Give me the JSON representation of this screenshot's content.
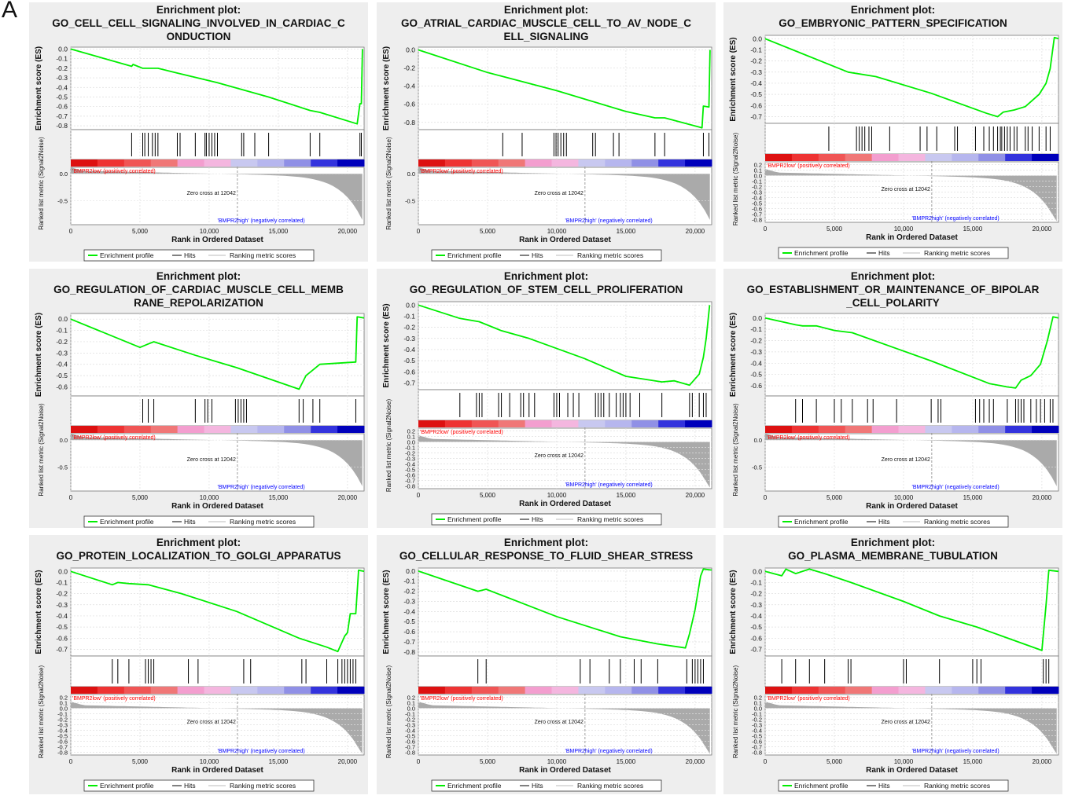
{
  "figure_label": "A",
  "common": {
    "title_prefix": "Enrichment plot:",
    "es_ylabel": "Enrichment score (ES)",
    "metric_ylabel": "Ranked list metric (Signal2Noise)",
    "xlabel": "Rank in Ordered Dataset",
    "x_ticks": [
      0,
      5000,
      10000,
      15000,
      20000
    ],
    "x_tick_labels": [
      "0",
      "5,000",
      "10,000",
      "15,000",
      "20,000"
    ],
    "x_range": [
      0,
      21200
    ],
    "zero_cross_label": "Zero cross at 12042",
    "zero_cross": 12042,
    "pos_label": "'BMPR2low' (positively correlated)",
    "neg_label": "'BMPR2high' (negatively correlated)",
    "legend": [
      "Enrichment profile",
      "Hits",
      "Ranking metric scores"
    ],
    "colors": {
      "profile": "#00ee00",
      "hits": "#000000",
      "metric": "#aaaaaa",
      "pos_text": "#ff0000",
      "neg_text": "#0000ff",
      "panel_bg": "#eeeeee",
      "heat": [
        "#dd1111",
        "#ee3333",
        "#f05555",
        "#f07777",
        "#f39ecf",
        "#f4b6df",
        "#c8c8f0",
        "#b6b6ee",
        "#9090e6",
        "#3333dd",
        "#0000bb"
      ]
    }
  },
  "chart_data": [
    {
      "type": "line",
      "title_lines": [
        "GO_CELL_CELL_SIGNALING_INVOLVED_IN_CARDIAC_C",
        "ONDUCTION"
      ],
      "es_ticks": [
        0.0,
        -0.1,
        -0.2,
        -0.3,
        -0.4,
        -0.5,
        -0.6,
        -0.7,
        -0.8
      ],
      "es_tick_labels": [
        "0.0",
        "-0.1",
        "-0.2",
        "-0.3",
        "-0.4",
        "-0.5",
        "-0.6",
        "-0.7",
        "-0.8"
      ],
      "es_ylim": [
        -0.84,
        0.02
      ],
      "metric_ticks": [
        0.0,
        -0.5
      ],
      "metric_tick_labels": [
        "0.0",
        "-0.5"
      ],
      "metric_ylim": [
        -0.95,
        0.12
      ],
      "hits": [
        4400,
        5200,
        5350,
        5600,
        5900,
        6100,
        6300,
        7700,
        7900,
        9000,
        9700,
        9800,
        10000,
        10200,
        10400,
        10600,
        12350,
        12500,
        13300,
        14300,
        17300,
        18000,
        20900,
        21000
      ],
      "profile": [
        [
          0,
          0.0
        ],
        [
          4400,
          -0.18
        ],
        [
          4500,
          -0.16
        ],
        [
          5200,
          -0.2
        ],
        [
          6300,
          -0.2
        ],
        [
          7700,
          -0.25
        ],
        [
          10600,
          -0.35
        ],
        [
          14300,
          -0.5
        ],
        [
          17300,
          -0.64
        ],
        [
          18000,
          -0.66
        ],
        [
          20700,
          -0.78
        ],
        [
          20900,
          -0.57
        ],
        [
          21000,
          -0.57
        ],
        [
          21080,
          0.0
        ]
      ]
    },
    {
      "type": "line",
      "title_lines": [
        "GO_ATRIAL_CARDIAC_MUSCLE_CELL_TO_AV_NODE_C",
        "ELL_SIGNALING"
      ],
      "es_ticks": [
        0.0,
        -0.2,
        -0.4,
        -0.6,
        -0.8
      ],
      "es_tick_labels": [
        "0.0",
        "-0.2",
        "-0.4",
        "-0.6",
        "-0.8"
      ],
      "es_ylim": [
        -0.88,
        0.03
      ],
      "metric_ticks": [
        0.0,
        -0.5
      ],
      "metric_tick_labels": [
        "0.0",
        "-0.5"
      ],
      "metric_ylim": [
        -0.95,
        0.12
      ],
      "hits": [
        6100,
        7500,
        9800,
        9950,
        10100,
        10300,
        10500,
        10700,
        12600,
        12800,
        14100,
        14500,
        17100,
        17800,
        20600,
        21000
      ],
      "profile": [
        [
          0,
          0.0
        ],
        [
          5000,
          -0.25
        ],
        [
          10000,
          -0.45
        ],
        [
          15000,
          -0.68
        ],
        [
          17100,
          -0.75
        ],
        [
          17800,
          -0.75
        ],
        [
          20500,
          -0.86
        ],
        [
          20600,
          -0.62
        ],
        [
          21000,
          -0.63
        ],
        [
          21080,
          0.0
        ]
      ]
    },
    {
      "type": "line",
      "title_lines": [
        "GO_EMBRYONIC_PATTERN_SPECIFICATION"
      ],
      "es_ticks": [
        0.0,
        -0.1,
        -0.2,
        -0.3,
        -0.4,
        -0.5,
        -0.6,
        -0.7
      ],
      "es_tick_labels": [
        "0.0",
        "-0.1",
        "-0.2",
        "-0.3",
        "-0.4",
        "-0.5",
        "-0.6",
        "-0.7"
      ],
      "es_ylim": [
        -0.76,
        0.03
      ],
      "metric_ticks": [
        0.2,
        0.1,
        0.0,
        -0.1,
        -0.2,
        -0.3,
        -0.4,
        -0.5,
        -0.6,
        -0.7,
        -0.8
      ],
      "metric_tick_labels": [
        "0.2",
        "0.1",
        "0.0",
        "-0.1",
        "-0.2",
        "-0.3",
        "-0.4",
        "-0.5",
        "-0.6",
        "-0.7",
        "-0.8"
      ],
      "metric_ylim": [
        -0.85,
        0.25
      ],
      "hits": [
        4600,
        6600,
        6800,
        7000,
        7200,
        7500,
        7700,
        9000,
        11200,
        11700,
        12400,
        13700,
        13900,
        15200,
        15800,
        16200,
        16500,
        16800,
        17000,
        17100,
        17300,
        17500,
        17700,
        18000,
        18200,
        18800,
        19000,
        19300,
        19800,
        20300,
        20600
      ],
      "profile": [
        [
          0,
          0.0
        ],
        [
          6000,
          -0.3
        ],
        [
          8000,
          -0.34
        ],
        [
          12000,
          -0.49
        ],
        [
          16000,
          -0.67
        ],
        [
          16800,
          -0.7
        ],
        [
          17200,
          -0.66
        ],
        [
          18000,
          -0.64
        ],
        [
          18800,
          -0.61
        ],
        [
          19800,
          -0.5
        ],
        [
          20300,
          -0.4
        ],
        [
          20600,
          -0.27
        ],
        [
          20900,
          0.01
        ],
        [
          21200,
          0.0
        ]
      ]
    },
    {
      "type": "line",
      "title_lines": [
        "GO_REGULATION_OF_CARDIAC_MUSCLE_CELL_MEMB",
        "RANE_REPOLARIZATION"
      ],
      "es_ticks": [
        0.0,
        -0.1,
        -0.2,
        -0.3,
        -0.4,
        -0.5,
        -0.6
      ],
      "es_tick_labels": [
        "0.0",
        "-0.1",
        "-0.2",
        "-0.3",
        "-0.4",
        "-0.5",
        "-0.6"
      ],
      "es_ylim": [
        -0.68,
        0.05
      ],
      "metric_ticks": [
        0.0,
        -0.5
      ],
      "metric_tick_labels": [
        "0.0",
        "-0.5"
      ],
      "metric_ylim": [
        -0.95,
        0.12
      ],
      "hits": [
        5200,
        5600,
        6000,
        9000,
        9700,
        9900,
        10200,
        11900,
        12100,
        12300,
        12500,
        12700,
        16500,
        16800,
        17500,
        18000,
        20600
      ],
      "profile": [
        [
          0,
          0.0
        ],
        [
          5000,
          -0.25
        ],
        [
          5600,
          -0.22
        ],
        [
          6000,
          -0.2
        ],
        [
          9000,
          -0.32
        ],
        [
          12000,
          -0.43
        ],
        [
          16500,
          -0.62
        ],
        [
          17000,
          -0.5
        ],
        [
          17500,
          -0.45
        ],
        [
          18000,
          -0.4
        ],
        [
          20600,
          -0.38
        ],
        [
          20700,
          0.02
        ],
        [
          21200,
          0.01
        ]
      ]
    },
    {
      "type": "line",
      "title_lines": [
        "GO_REGULATION_OF_STEM_CELL_PROLIFERATION"
      ],
      "es_ticks": [
        0.0,
        -0.1,
        -0.2,
        -0.3,
        -0.4,
        -0.5,
        -0.6,
        -0.7
      ],
      "es_tick_labels": [
        "0.0",
        "-0.1",
        "-0.2",
        "-0.3",
        "-0.4",
        "-0.5",
        "-0.6",
        "-0.7"
      ],
      "es_ylim": [
        -0.76,
        0.03
      ],
      "metric_ticks": [
        0.2,
        0.1,
        0.0,
        -0.1,
        -0.2,
        -0.3,
        -0.4,
        -0.5,
        -0.6,
        -0.7,
        -0.8
      ],
      "metric_tick_labels": [
        "0.2",
        "0.1",
        "0.0",
        "-0.1",
        "-0.2",
        "-0.3",
        "-0.4",
        "-0.5",
        "-0.6",
        "-0.7",
        "-0.8"
      ],
      "metric_ylim": [
        -0.85,
        0.25
      ],
      "hits": [
        3000,
        4200,
        4400,
        4600,
        5800,
        6000,
        6600,
        7400,
        7600,
        8000,
        8400,
        9800,
        10000,
        10200,
        10800,
        11200,
        11600,
        12800,
        13000,
        13200,
        13400,
        13800,
        14300,
        14600,
        14800,
        15000,
        15300,
        16000,
        17600,
        19600,
        19800,
        20300,
        20600,
        20800
      ],
      "profile": [
        [
          0,
          0.0
        ],
        [
          3000,
          -0.12
        ],
        [
          4400,
          -0.15
        ],
        [
          6000,
          -0.23
        ],
        [
          8000,
          -0.3
        ],
        [
          12000,
          -0.48
        ],
        [
          15000,
          -0.64
        ],
        [
          17600,
          -0.69
        ],
        [
          18500,
          -0.68
        ],
        [
          19600,
          -0.72
        ],
        [
          20300,
          -0.62
        ],
        [
          20600,
          -0.47
        ],
        [
          20800,
          -0.3
        ],
        [
          21050,
          0.0
        ]
      ]
    },
    {
      "type": "line",
      "title_lines": [
        "GO_ESTABLISHMENT_OR_MAINTENANCE_OF_BIPOLAR",
        "_CELL_POLARITY"
      ],
      "es_ticks": [
        0.0,
        -0.1,
        -0.2,
        -0.3,
        -0.4,
        -0.5,
        -0.6
      ],
      "es_tick_labels": [
        "0.0",
        "-0.1",
        "-0.2",
        "-0.3",
        "-0.4",
        "-0.5",
        "-0.6"
      ],
      "es_ylim": [
        -0.69,
        0.04
      ],
      "metric_ticks": [
        0.0,
        -0.5
      ],
      "metric_tick_labels": [
        "0.0",
        "-0.5"
      ],
      "metric_ylim": [
        -0.95,
        0.12
      ],
      "hits": [
        2200,
        2700,
        3700,
        5000,
        5500,
        6300,
        7400,
        7800,
        9500,
        12000,
        12500,
        12700,
        15200,
        15500,
        15800,
        16200,
        16500,
        17500,
        18100,
        18300,
        18500,
        18700,
        19200,
        19600,
        19900,
        20200,
        20600,
        20800
      ],
      "profile": [
        [
          0,
          0.0
        ],
        [
          2200,
          -0.06
        ],
        [
          2700,
          -0.07
        ],
        [
          3700,
          -0.07
        ],
        [
          5000,
          -0.11
        ],
        [
          6300,
          -0.13
        ],
        [
          12000,
          -0.38
        ],
        [
          16200,
          -0.58
        ],
        [
          17500,
          -0.61
        ],
        [
          18100,
          -0.62
        ],
        [
          18500,
          -0.55
        ],
        [
          19200,
          -0.51
        ],
        [
          19900,
          -0.41
        ],
        [
          20400,
          -0.2
        ],
        [
          20800,
          0.01
        ],
        [
          21200,
          0.0
        ]
      ]
    },
    {
      "type": "line",
      "title_lines": [
        "GO_PROTEIN_LOCALIZATION_TO_GOLGI_APPARATUS"
      ],
      "es_ticks": [
        0.0,
        -0.1,
        -0.2,
        -0.3,
        -0.4,
        -0.5,
        -0.6,
        -0.7
      ],
      "es_tick_labels": [
        "0.0",
        "-0.1",
        "-0.2",
        "-0.3",
        "-0.4",
        "-0.5",
        "-0.6",
        "-0.7"
      ],
      "es_ylim": [
        -0.76,
        0.03
      ],
      "metric_ticks": [
        0.2,
        0.1,
        0.0,
        -0.1,
        -0.2,
        -0.3,
        -0.4,
        -0.5,
        -0.6,
        -0.7,
        -0.8
      ],
      "metric_tick_labels": [
        "0.2",
        "0.1",
        "0.0",
        "-0.1",
        "-0.2",
        "-0.3",
        "-0.4",
        "-0.5",
        "-0.6",
        "-0.7",
        "-0.8"
      ],
      "metric_ylim": [
        -0.85,
        0.25
      ],
      "hits": [
        3000,
        3400,
        4200,
        5400,
        5600,
        5800,
        6000,
        8500,
        9200,
        12500,
        13000,
        16700,
        17000,
        18500,
        19300,
        19600,
        19800,
        20000,
        20200,
        20400,
        20600
      ],
      "profile": [
        [
          0,
          0.0
        ],
        [
          3000,
          -0.12
        ],
        [
          3400,
          -0.1
        ],
        [
          4200,
          -0.11
        ],
        [
          5600,
          -0.12
        ],
        [
          8000,
          -0.2
        ],
        [
          12000,
          -0.36
        ],
        [
          16500,
          -0.6
        ],
        [
          18500,
          -0.68
        ],
        [
          19300,
          -0.72
        ],
        [
          19800,
          -0.58
        ],
        [
          20000,
          -0.55
        ],
        [
          20200,
          -0.38
        ],
        [
          20600,
          -0.38
        ],
        [
          20800,
          0.01
        ],
        [
          21200,
          0.0
        ]
      ]
    },
    {
      "type": "line",
      "title_lines": [
        "GO_CELLULAR_RESPONSE_TO_FLUID_SHEAR_STRESS"
      ],
      "es_ticks": [
        0.0,
        -0.1,
        -0.2,
        -0.3,
        -0.4,
        -0.5,
        -0.6,
        -0.7,
        -0.8
      ],
      "es_tick_labels": [
        "0.0",
        "-0.1",
        "-0.2",
        "-0.3",
        "-0.4",
        "-0.5",
        "-0.6",
        "-0.7",
        "-0.8"
      ],
      "es_ylim": [
        -0.84,
        0.03
      ],
      "metric_ticks": [
        0.2,
        0.1,
        0.0,
        -0.1,
        -0.2,
        -0.3,
        -0.4,
        -0.5,
        -0.6,
        -0.7,
        -0.8
      ],
      "metric_tick_labels": [
        "0.2",
        "0.1",
        "0.0",
        "-0.1",
        "-0.2",
        "-0.3",
        "-0.4",
        "-0.5",
        "-0.6",
        "-0.7",
        "-0.8"
      ],
      "metric_ylim": [
        -0.85,
        0.25
      ],
      "hits": [
        4300,
        4900,
        11700,
        12400,
        13800,
        14600,
        15600,
        16100,
        17300,
        19400,
        19800,
        20000,
        20200,
        20400,
        20600
      ],
      "profile": [
        [
          0,
          0.0
        ],
        [
          4300,
          -0.2
        ],
        [
          4900,
          -0.18
        ],
        [
          10000,
          -0.45
        ],
        [
          14600,
          -0.65
        ],
        [
          17300,
          -0.72
        ],
        [
          19300,
          -0.76
        ],
        [
          19600,
          -0.62
        ],
        [
          19800,
          -0.5
        ],
        [
          20000,
          -0.38
        ],
        [
          20400,
          -0.05
        ],
        [
          20600,
          0.02
        ],
        [
          21200,
          0.01
        ]
      ]
    },
    {
      "type": "line",
      "title_lines": [
        "GO_PLASMA_MEMBRANE_TUBULATION"
      ],
      "es_ticks": [
        0.0,
        -0.1,
        -0.2,
        -0.3,
        -0.4,
        -0.5,
        -0.6,
        -0.7
      ],
      "es_tick_labels": [
        "0.0",
        "-0.1",
        "-0.2",
        "-0.3",
        "-0.4",
        "-0.5",
        "-0.6",
        "-0.7"
      ],
      "es_ylim": [
        -0.76,
        0.03
      ],
      "metric_ticks": [
        0.2,
        0.1,
        0.0,
        -0.1,
        -0.2,
        -0.3,
        -0.4,
        -0.5,
        -0.6,
        -0.7,
        -0.8
      ],
      "metric_tick_labels": [
        "0.2",
        "0.1",
        "0.0",
        "-0.1",
        "-0.2",
        "-0.3",
        "-0.4",
        "-0.5",
        "-0.6",
        "-0.7",
        "-0.8"
      ],
      "metric_ylim": [
        -0.85,
        0.25
      ],
      "hits": [
        1200,
        2200,
        3200,
        4300,
        6000,
        6200,
        10000,
        10200,
        12600,
        15000,
        15300,
        15600,
        20100,
        20300,
        20500
      ],
      "profile": [
        [
          0,
          0.0
        ],
        [
          1200,
          -0.04
        ],
        [
          1500,
          0.02
        ],
        [
          2200,
          -0.02
        ],
        [
          3200,
          0.02
        ],
        [
          4300,
          -0.02
        ],
        [
          6200,
          -0.1
        ],
        [
          10000,
          -0.27
        ],
        [
          12600,
          -0.4
        ],
        [
          15300,
          -0.5
        ],
        [
          20000,
          -0.71
        ],
        [
          20300,
          -0.3
        ],
        [
          20500,
          0.01
        ],
        [
          21200,
          0.0
        ]
      ]
    }
  ]
}
